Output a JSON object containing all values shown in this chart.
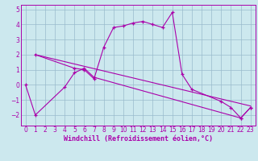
{
  "xlabel": "Windchill (Refroidissement éolien,°C)",
  "bg_color": "#cce8ee",
  "line_color": "#aa00aa",
  "grid_color": "#99bbcc",
  "spine_color": "#aa00aa",
  "xlim": [
    -0.5,
    23.5
  ],
  "ylim": [
    -2.7,
    5.3
  ],
  "xticks": [
    0,
    1,
    2,
    3,
    4,
    5,
    6,
    7,
    8,
    9,
    10,
    11,
    12,
    13,
    14,
    15,
    16,
    17,
    18,
    19,
    20,
    21,
    22,
    23
  ],
  "yticks": [
    -2,
    -1,
    0,
    1,
    2,
    3,
    4,
    5
  ],
  "series1_x": [
    0,
    1,
    4,
    5,
    6,
    7,
    22,
    23
  ],
  "series1_y": [
    0,
    -2,
    -0.15,
    0.8,
    1.1,
    0.5,
    -2.2,
    -1.5
  ],
  "series2_x": [
    1,
    5,
    6,
    7,
    8,
    9,
    10,
    11,
    12,
    13,
    14,
    15,
    16,
    17,
    20,
    21,
    22,
    23
  ],
  "series2_y": [
    2,
    1.1,
    1.0,
    0.4,
    2.5,
    3.8,
    3.9,
    4.1,
    4.2,
    4.0,
    3.8,
    4.8,
    0.7,
    -0.3,
    -1.1,
    -1.5,
    -2.2,
    -1.5
  ],
  "trend_x": [
    1,
    23
  ],
  "trend_y": [
    2.0,
    -1.4
  ],
  "tick_fontsize": 5.5,
  "xlabel_fontsize": 6.0
}
